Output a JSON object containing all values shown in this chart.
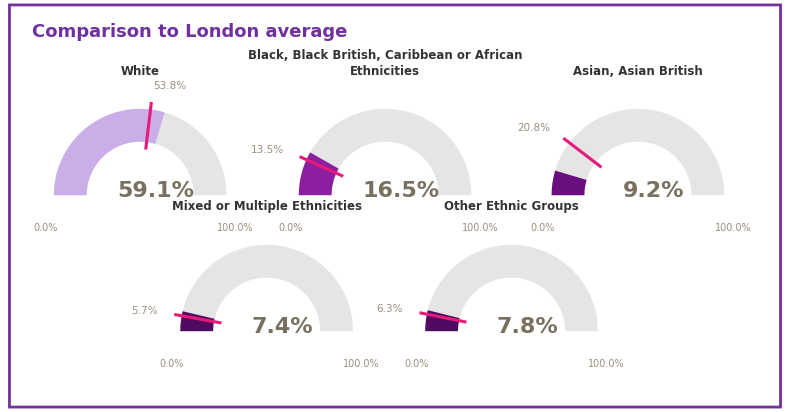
{
  "title": "Comparison to London average",
  "title_color": "#7030a0",
  "background_color": "#ffffff",
  "border_color": "#7030a0",
  "gauges": [
    {
      "label": "White",
      "ward_value": 59.1,
      "london_value": 53.8,
      "ward_color": "#c9aee8",
      "london_color": "#e8197a",
      "row": 0,
      "col": 0
    },
    {
      "label": "Black, Black British, Caribbean or African\nEthnicities",
      "ward_value": 16.5,
      "london_value": 13.5,
      "ward_color": "#8b1fa0",
      "london_color": "#e8197a",
      "row": 0,
      "col": 1
    },
    {
      "label": "Asian, Asian British",
      "ward_value": 9.2,
      "london_value": 20.8,
      "ward_color": "#6a0f80",
      "london_color": "#e8197a",
      "row": 0,
      "col": 2
    },
    {
      "label": "Mixed or Multiple Ethnicities",
      "ward_value": 7.4,
      "london_value": 5.7,
      "ward_color": "#500a60",
      "london_color": "#e8197a",
      "row": 1,
      "col": 0
    },
    {
      "label": "Other Ethnic Groups",
      "ward_value": 7.8,
      "london_value": 6.3,
      "ward_color": "#500a60",
      "london_color": "#e8197a",
      "row": 1,
      "col": 1
    }
  ],
  "gauge_bg_color": "#e5e5e5",
  "tick_label_color": "#999080",
  "value_label_color": "#7a7060",
  "title_fontsize": 13,
  "value_fontsize": 16,
  "tick_fontsize": 7,
  "london_label_fontsize": 7.5,
  "gauge_title_fontsize": 8.5
}
